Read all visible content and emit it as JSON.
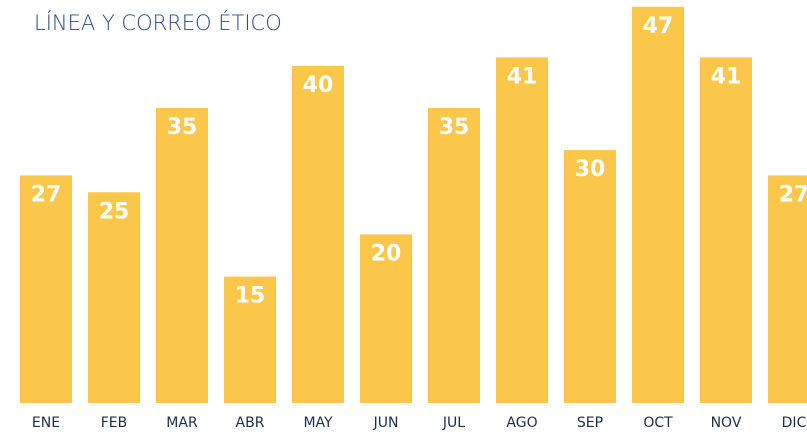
{
  "chart_data": {
    "type": "bar",
    "title": "LÍNEA Y CORREO ÉTICO",
    "categories": [
      "ENE",
      "FEB",
      "MAR",
      "ABR",
      "MAY",
      "JUN",
      "JUL",
      "AGO",
      "SEP",
      "OCT",
      "NOV",
      "DIC"
    ],
    "values": [
      27,
      25,
      35,
      15,
      40,
      20,
      35,
      41,
      30,
      47,
      41,
      27
    ],
    "color": "#fbc74a"
  }
}
